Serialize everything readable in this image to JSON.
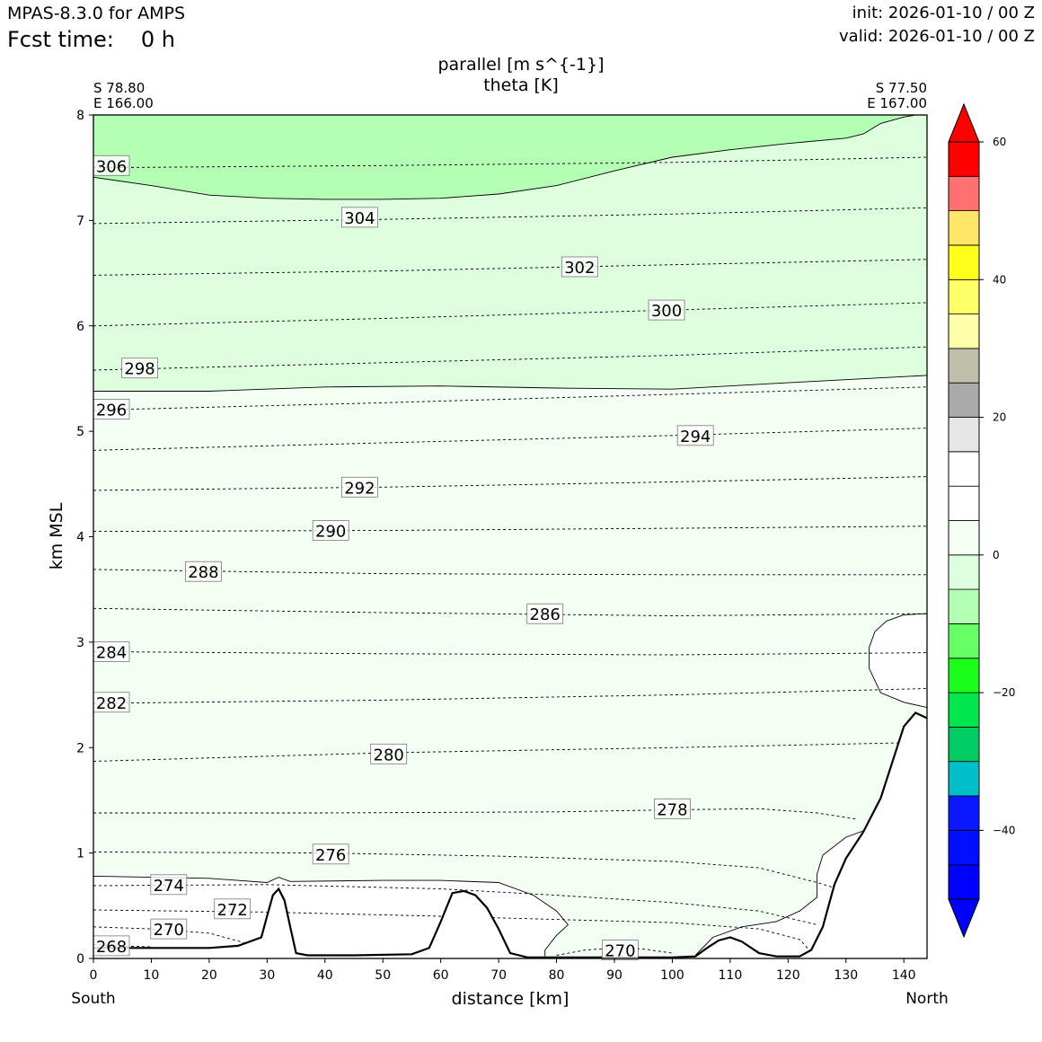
{
  "header": {
    "model": "MPAS-8.3.0 for AMPS",
    "fcst_label": "Fcst time:",
    "fcst_value": "0 h",
    "init": "init: 2026-01-10 / 00 Z",
    "valid": "valid: 2026-01-10 / 00 Z"
  },
  "chart_data": {
    "type": "cross-section",
    "title_lines": [
      "parallel [m s^{-1}]",
      "theta [K]"
    ],
    "xlabel": "distance [km]",
    "ylabel": "km MSL",
    "xlim": [
      0,
      144
    ],
    "ylim": [
      0,
      8
    ],
    "xticks": [
      0,
      10,
      20,
      30,
      40,
      50,
      60,
      70,
      80,
      90,
      100,
      110,
      120,
      130,
      140
    ],
    "yticks": [
      0,
      1,
      2,
      3,
      4,
      5,
      6,
      7,
      8
    ],
    "endpoints": {
      "left": {
        "lat": "S 78.80",
        "lon": "E 166.00",
        "label": "South"
      },
      "right": {
        "lat": "S 77.50",
        "lon": "E 167.00",
        "label": "North"
      }
    },
    "colorbar": {
      "levels": [
        -50,
        -45,
        -40,
        -35,
        -30,
        -25,
        -20,
        -15,
        -10,
        -5,
        0,
        5,
        10,
        15,
        20,
        25,
        30,
        35,
        40,
        45,
        50,
        55,
        60
      ],
      "colors": [
        "#0000ff",
        "#0010ff",
        "#0a18ff",
        "#00bfc8",
        "#00cc66",
        "#00e64d",
        "#1aff1a",
        "#66ff66",
        "#b3ffb3",
        "#ddffdd",
        "#f2fff2",
        "#ffffff",
        "#ffffff",
        "#e6e6e6",
        "#aaaaaa",
        "#bfbfaa",
        "#ffffaa",
        "#ffff66",
        "#ffff1a",
        "#ffe666",
        "#ff7070",
        "#ff0000"
      ],
      "under_color": "#0000ff",
      "over_color": "#ff0000",
      "tick_values": [
        -40,
        -20,
        0,
        20,
        40,
        60
      ],
      "tick_labels": [
        "−40",
        "−20",
        "0",
        "20",
        "40",
        "60"
      ]
    },
    "wind_fill": {
      "background_color": "#f2fff2",
      "band_color": "#ddffdd",
      "band_bottom_km": [
        [
          0,
          5.38
        ],
        [
          20,
          5.38
        ],
        [
          40,
          5.42
        ],
        [
          60,
          5.43
        ],
        [
          80,
          5.41
        ],
        [
          100,
          5.4
        ],
        [
          120,
          5.46
        ],
        [
          144,
          5.53
        ]
      ],
      "top_color": "#b3ffb3",
      "top_bottom_km": [
        [
          0,
          7.41
        ],
        [
          10,
          7.33
        ],
        [
          20,
          7.24
        ],
        [
          30,
          7.21
        ],
        [
          40,
          7.2
        ],
        [
          50,
          7.2
        ],
        [
          60,
          7.21
        ],
        [
          70,
          7.25
        ],
        [
          80,
          7.33
        ],
        [
          90,
          7.47
        ],
        [
          100,
          7.6
        ],
        [
          110,
          7.67
        ],
        [
          120,
          7.73
        ],
        [
          130,
          7.78
        ],
        [
          133,
          7.82
        ],
        [
          136,
          7.92
        ],
        [
          140,
          7.98
        ],
        [
          142,
          8.0
        ]
      ],
      "white_pocket": [
        [
          144,
          3.27
        ],
        [
          140,
          3.26
        ],
        [
          137,
          3.2
        ],
        [
          135,
          3.1
        ],
        [
          134,
          2.95
        ],
        [
          134,
          2.75
        ],
        [
          136,
          2.52
        ],
        [
          140,
          2.43
        ],
        [
          144,
          2.38
        ]
      ]
    },
    "terrain_km": [
      [
        0,
        0.1
      ],
      [
        5,
        0.1
      ],
      [
        10,
        0.1
      ],
      [
        15,
        0.1
      ],
      [
        20,
        0.1
      ],
      [
        25,
        0.12
      ],
      [
        29,
        0.2
      ],
      [
        30,
        0.4
      ],
      [
        31,
        0.6
      ],
      [
        32,
        0.66
      ],
      [
        33,
        0.55
      ],
      [
        34,
        0.3
      ],
      [
        35,
        0.05
      ],
      [
        37,
        0.03
      ],
      [
        45,
        0.03
      ],
      [
        55,
        0.04
      ],
      [
        58,
        0.1
      ],
      [
        60,
        0.35
      ],
      [
        62,
        0.62
      ],
      [
        64,
        0.64
      ],
      [
        66,
        0.6
      ],
      [
        68,
        0.48
      ],
      [
        70,
        0.28
      ],
      [
        72,
        0.05
      ],
      [
        75,
        0.01
      ],
      [
        85,
        0.01
      ],
      [
        100,
        0.01
      ],
      [
        104,
        0.02
      ],
      [
        106,
        0.1
      ],
      [
        108,
        0.17
      ],
      [
        110,
        0.2
      ],
      [
        112,
        0.16
      ],
      [
        115,
        0.05
      ],
      [
        118,
        0.02
      ],
      [
        122,
        0.02
      ],
      [
        124,
        0.08
      ],
      [
        126,
        0.3
      ],
      [
        128,
        0.7
      ],
      [
        130,
        0.95
      ],
      [
        133,
        1.2
      ],
      [
        136,
        1.52
      ],
      [
        138,
        1.86
      ],
      [
        140,
        2.2
      ],
      [
        142,
        2.33
      ],
      [
        144,
        2.28
      ]
    ],
    "theta_contours": [
      {
        "value": 306,
        "label": "306",
        "points": [
          [
            0,
            7.5
          ],
          [
            50,
            7.52
          ],
          [
            100,
            7.55
          ],
          [
            144,
            7.6
          ]
        ],
        "label_at": [
          3,
          7.52
        ]
      },
      {
        "value": 304,
        "label": "304",
        "points": [
          [
            0,
            6.97
          ],
          [
            50,
            7.01
          ],
          [
            100,
            7.06
          ],
          [
            144,
            7.12
          ]
        ],
        "label_at": [
          46,
          7.03
        ]
      },
      {
        "value": 302,
        "label": "302",
        "points": [
          [
            0,
            6.48
          ],
          [
            50,
            6.52
          ],
          [
            100,
            6.58
          ],
          [
            144,
            6.63
          ]
        ],
        "label_at": [
          84,
          6.56
        ]
      },
      {
        "value": 300,
        "label": "300",
        "points": [
          [
            0,
            6.0
          ],
          [
            50,
            6.07
          ],
          [
            100,
            6.15
          ],
          [
            144,
            6.22
          ]
        ],
        "label_at": [
          99,
          6.15
        ]
      },
      {
        "value": 298,
        "label": "298",
        "points": [
          [
            0,
            5.58
          ],
          [
            50,
            5.65
          ],
          [
            100,
            5.72
          ],
          [
            144,
            5.8
          ]
        ],
        "label_at": [
          8,
          5.6
        ]
      },
      {
        "value": 296,
        "label": "296",
        "points": [
          [
            0,
            5.2
          ],
          [
            50,
            5.27
          ],
          [
            100,
            5.35
          ],
          [
            144,
            5.42
          ]
        ],
        "label_at": [
          3,
          5.21
        ]
      },
      {
        "value": 294,
        "label": "294",
        "points": [
          [
            0,
            4.82
          ],
          [
            50,
            4.89
          ],
          [
            100,
            4.96
          ],
          [
            144,
            5.03
          ]
        ],
        "label_at": [
          104,
          4.96
        ]
      },
      {
        "value": 292,
        "label": "292",
        "points": [
          [
            0,
            4.44
          ],
          [
            50,
            4.47
          ],
          [
            100,
            4.52
          ],
          [
            144,
            4.57
          ]
        ],
        "label_at": [
          46,
          4.47
        ]
      },
      {
        "value": 290,
        "label": "290",
        "points": [
          [
            0,
            4.05
          ],
          [
            50,
            4.06
          ],
          [
            100,
            4.08
          ],
          [
            144,
            4.1
          ]
        ],
        "label_at": [
          41,
          4.06
        ]
      },
      {
        "value": 288,
        "label": "288",
        "points": [
          [
            0,
            3.69
          ],
          [
            50,
            3.65
          ],
          [
            100,
            3.64
          ],
          [
            144,
            3.64
          ]
        ],
        "label_at": [
          19,
          3.67
        ]
      },
      {
        "value": 286,
        "label": "286",
        "points": [
          [
            0,
            3.32
          ],
          [
            50,
            3.28
          ],
          [
            100,
            3.25
          ],
          [
            144,
            3.27
          ]
        ],
        "label_at": [
          78,
          3.27
        ]
      },
      {
        "value": 284,
        "label": "284",
        "points": [
          [
            0,
            2.91
          ],
          [
            50,
            2.89
          ],
          [
            100,
            2.88
          ],
          [
            144,
            2.9
          ]
        ],
        "label_at": [
          3,
          2.91
        ]
      },
      {
        "value": 282,
        "label": "282",
        "points": [
          [
            0,
            2.42
          ],
          [
            50,
            2.45
          ],
          [
            100,
            2.5
          ],
          [
            144,
            2.56
          ]
        ],
        "label_at": [
          3,
          2.43
        ]
      },
      {
        "value": 280,
        "label": "280",
        "points": [
          [
            0,
            1.87
          ],
          [
            50,
            1.95
          ],
          [
            100,
            2.0
          ],
          [
            144,
            2.05
          ]
        ],
        "label_at": [
          51,
          1.94
        ]
      },
      {
        "value": 278,
        "label": "278",
        "points": [
          [
            0,
            1.38
          ],
          [
            40,
            1.38
          ],
          [
            80,
            1.39
          ],
          [
            100,
            1.41
          ],
          [
            115,
            1.42
          ],
          [
            125,
            1.38
          ],
          [
            132,
            1.32
          ]
        ],
        "label_at": [
          100,
          1.42
        ]
      },
      {
        "value": 276,
        "label": "276",
        "points": [
          [
            0,
            1.01
          ],
          [
            40,
            1.0
          ],
          [
            70,
            0.97
          ],
          [
            100,
            0.92
          ],
          [
            115,
            0.86
          ],
          [
            125,
            0.72
          ],
          [
            131,
            0.62
          ]
        ],
        "label_at": [
          41,
          0.99
        ]
      },
      {
        "value": 274,
        "label": "274",
        "points": [
          [
            0,
            0.69
          ],
          [
            30,
            0.7
          ],
          [
            60,
            0.66
          ],
          [
            80,
            0.6
          ],
          [
            100,
            0.53
          ],
          [
            115,
            0.45
          ],
          [
            125,
            0.32
          ]
        ],
        "label_at": [
          13,
          0.7
        ]
      },
      {
        "value": 272,
        "label": "272",
        "points": [
          [
            0,
            0.46
          ],
          [
            30,
            0.44
          ],
          [
            60,
            0.4
          ],
          [
            80,
            0.37
          ],
          [
            100,
            0.34
          ],
          [
            115,
            0.28
          ],
          [
            122,
            0.18
          ],
          [
            124,
            0.06
          ]
        ],
        "label_at": [
          24,
          0.47
        ]
      },
      {
        "value": 270,
        "label": "270",
        "points": [
          [
            0,
            0.3
          ],
          [
            10,
            0.28
          ],
          [
            20,
            0.24
          ],
          [
            26,
            0.15
          ]
        ],
        "label_at": [
          13,
          0.28
        ]
      },
      {
        "value": 270,
        "label": "270",
        "points": [
          [
            80,
            0.03
          ],
          [
            85,
            0.08
          ],
          [
            90,
            0.1
          ],
          [
            95,
            0.09
          ],
          [
            100,
            0.05
          ]
        ],
        "label_at": [
          91,
          0.08
        ]
      },
      {
        "value": 268,
        "label": "268",
        "points": [
          [
            0,
            0.13
          ],
          [
            5,
            0.12
          ],
          [
            10,
            0.11
          ]
        ],
        "label_at": [
          3,
          0.12
        ]
      }
    ],
    "wind_zero_contour_low": [
      [
        0,
        0.78
      ],
      [
        20,
        0.76
      ],
      [
        30,
        0.72
      ],
      [
        32,
        0.77
      ],
      [
        34,
        0.73
      ],
      [
        50,
        0.74
      ],
      [
        60,
        0.74
      ],
      [
        70,
        0.72
      ],
      [
        76,
        0.6
      ],
      [
        80,
        0.45
      ],
      [
        82,
        0.32
      ],
      [
        80,
        0.22
      ],
      [
        78,
        0.08
      ],
      [
        78,
        0.02
      ]
    ],
    "wind_zero_contour_right": [
      [
        104,
        0.03
      ],
      [
        107,
        0.2
      ],
      [
        112,
        0.3
      ],
      [
        118,
        0.35
      ],
      [
        122,
        0.45
      ],
      [
        125,
        0.58
      ],
      [
        125,
        0.8
      ],
      [
        126,
        0.98
      ],
      [
        130,
        1.15
      ],
      [
        135,
        1.25
      ],
      [
        137,
        1.26
      ]
    ]
  }
}
